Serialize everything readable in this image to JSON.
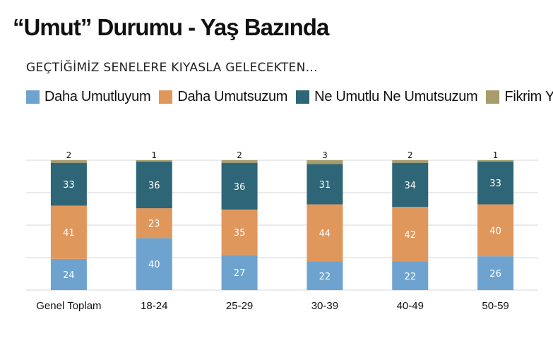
{
  "chart_data": {
    "type": "bar",
    "stacked": true,
    "title": "“Umut” Durumu - Yaş Bazında",
    "subtitle": "GEÇTİĞİMİZ SENELERE KIYASLA GELECEKTEN…",
    "categories": [
      "Genel Toplam",
      "18-24",
      "25-29",
      "30-39",
      "40-49",
      "50-59"
    ],
    "series": [
      {
        "name": "Daha Umutluyum",
        "color": "#6fa3cf",
        "values": [
          24,
          40,
          27,
          22,
          22,
          26
        ]
      },
      {
        "name": "Daha Umutsuzum",
        "color": "#e0975c",
        "values": [
          41,
          23,
          35,
          44,
          42,
          40
        ]
      },
      {
        "name": "Ne Umutlu Ne Umutsuzum",
        "color": "#2e6677",
        "values": [
          33,
          36,
          36,
          31,
          34,
          33
        ]
      },
      {
        "name": "Fikrim Yok",
        "color": "#a79d6b",
        "values": [
          2,
          1,
          2,
          3,
          2,
          1
        ]
      }
    ],
    "ylim": [
      0,
      100
    ],
    "grid": true,
    "legend_position": "top"
  }
}
